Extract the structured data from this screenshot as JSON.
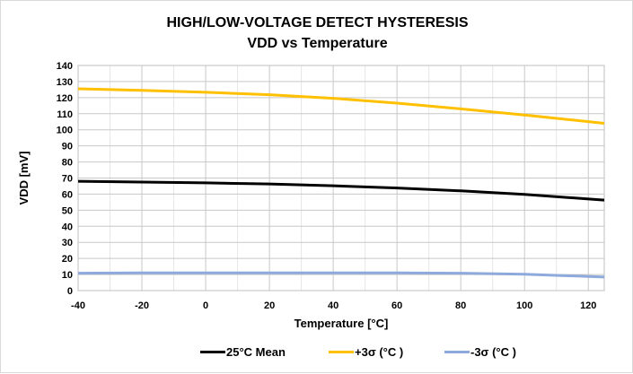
{
  "chart_data": {
    "type": "line",
    "title": "HIGH/LOW-VOLTAGE DETECT  HYSTERESIS",
    "subtitle": "VDD vs Temperature",
    "xlabel": "Temperature [°C]",
    "ylabel": "VDD [mV]",
    "xlim": [
      -40,
      125
    ],
    "ylim": [
      0,
      140
    ],
    "xticks": [
      -40,
      -20,
      0,
      20,
      40,
      60,
      80,
      100,
      120
    ],
    "yticks": [
      0,
      10,
      20,
      30,
      40,
      50,
      60,
      70,
      80,
      90,
      100,
      110,
      120,
      130,
      140
    ],
    "grid": true,
    "legend": "bottom",
    "x": [
      -40,
      -20,
      0,
      20,
      40,
      60,
      80,
      100,
      125
    ],
    "series": [
      {
        "name": "25°C Mean",
        "color": "#000000",
        "values": [
          68,
          67.5,
          67,
          66.3,
          65.2,
          63.8,
          62,
          59.8,
          56.3
        ]
      },
      {
        "name": "+3σ (°C )",
        "color": "#FFC000",
        "values": [
          125.5,
          124.5,
          123.3,
          121.8,
          119.6,
          116.6,
          113,
          109.2,
          104
        ]
      },
      {
        "name": "-3σ (°C )",
        "color": "#8EA9DB",
        "values": [
          10.8,
          11,
          11,
          11,
          11,
          11,
          10.8,
          10.2,
          8.4
        ]
      }
    ]
  }
}
